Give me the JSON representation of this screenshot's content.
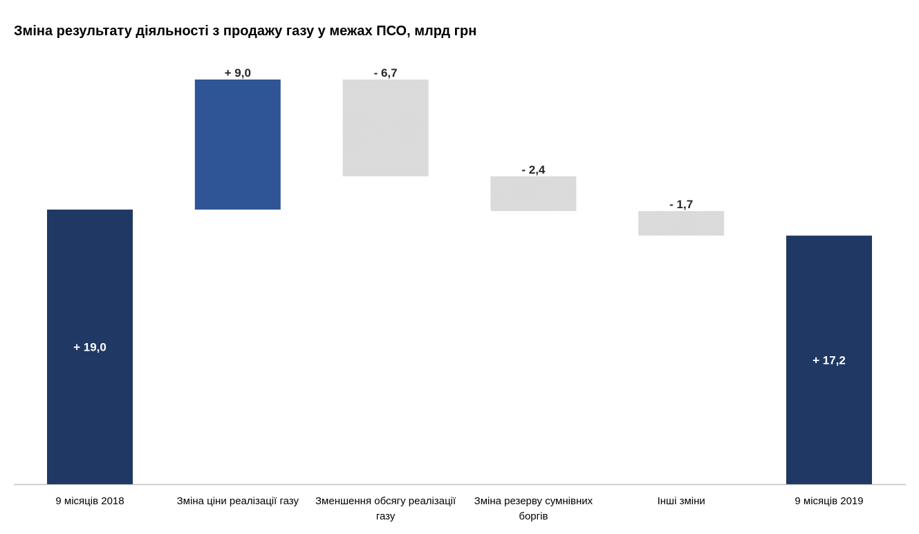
{
  "chart_data": {
    "type": "waterfall",
    "title": "Зміна результату діяльності з продажу газу у межах ПСО, млрд грн",
    "categories": [
      "9 місяців 2018",
      "Зміна ціни реалізації газу",
      "Зменшення обсягу реалізації газу",
      "Зміна резерву сумнівних боргів",
      "Інші зміни",
      "9 місяців 2019"
    ],
    "values": [
      19.0,
      9.0,
      -6.7,
      -2.4,
      -1.7,
      17.2
    ],
    "kinds": [
      "total",
      "increase",
      "decrease",
      "decrease",
      "decrease",
      "total"
    ],
    "data_labels": [
      "+ 19,0",
      "+ 9,0",
      "- 6,7",
      "- 2,4",
      "- 1,7",
      "+ 17,2"
    ],
    "ylim": [
      0,
      28.2
    ],
    "grid": false,
    "colors": {
      "total": "#203864",
      "increase": "#2F5597",
      "decrease": "#D9D9D9",
      "axis": "#BFBFBF"
    }
  }
}
